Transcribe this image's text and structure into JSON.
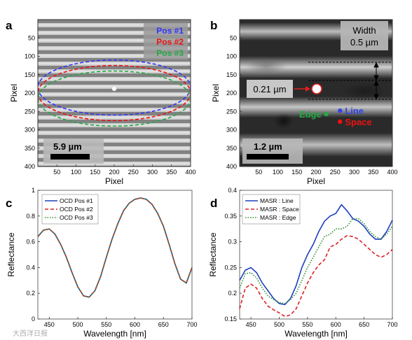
{
  "chart_data": [
    {
      "panel": "a",
      "type": "image",
      "xlabel": "Pixel",
      "ylabel": "Pixel",
      "x_ticks": [
        50,
        100,
        150,
        200,
        250,
        300,
        350,
        400
      ],
      "y_ticks": [
        50,
        100,
        150,
        200,
        250,
        300,
        350,
        400
      ],
      "xlim": [
        0,
        400
      ],
      "ylim": [
        0,
        400
      ],
      "legend": [
        "Pos #1",
        "Pos #2",
        "Pos #3"
      ],
      "legend_colors": [
        "#3333ff",
        "#ee1111",
        "#22aa44"
      ],
      "ellipses": [
        {
          "name": "Pos #1",
          "cx": 200,
          "cy": 185,
          "rx": 200,
          "ry": 75
        },
        {
          "name": "Pos #2",
          "cx": 200,
          "cy": 200,
          "rx": 200,
          "ry": 75
        },
        {
          "name": "Pos #3",
          "cx": 200,
          "cy": 215,
          "rx": 200,
          "ry": 75
        }
      ],
      "scalebar": "5.9 µm"
    },
    {
      "panel": "b",
      "type": "image",
      "xlabel": "Pixel",
      "ylabel": "Pixel",
      "x_ticks": [
        50,
        100,
        150,
        200,
        250,
        300,
        350,
        400
      ],
      "y_ticks": [
        50,
        100,
        150,
        200,
        250,
        300,
        350,
        400
      ],
      "xlim": [
        0,
        400
      ],
      "ylim": [
        0,
        400
      ],
      "width_label": "Width\n0.5 µm",
      "spot_label": "0.21 µm",
      "scalebar": "1.2 µm",
      "points": [
        {
          "label": "Line",
          "x": 263,
          "y": 248,
          "color": "#3344ee"
        },
        {
          "label": "Edge",
          "x": 227,
          "y": 257,
          "color": "#22aa44"
        },
        {
          "label": "Space",
          "x": 263,
          "y": 278,
          "color": "#ee1111"
        }
      ]
    },
    {
      "panel": "c",
      "type": "line",
      "xlabel": "Wavelength [nm]",
      "ylabel": "Reflectance",
      "xlim": [
        430,
        700
      ],
      "ylim": [
        0,
        1
      ],
      "x_ticks": [
        450,
        500,
        550,
        600,
        650,
        700
      ],
      "y_ticks": [
        0,
        0.2,
        0.4,
        0.6,
        0.8,
        1
      ],
      "x": [
        430,
        440,
        450,
        460,
        470,
        480,
        490,
        500,
        510,
        520,
        530,
        540,
        550,
        560,
        570,
        580,
        590,
        600,
        610,
        620,
        630,
        640,
        650,
        660,
        670,
        680,
        690,
        700
      ],
      "series": [
        {
          "name": "OCD Pos #1",
          "color": "#1f3fbf",
          "dash": "",
          "values": [
            0.64,
            0.69,
            0.7,
            0.66,
            0.58,
            0.48,
            0.36,
            0.25,
            0.18,
            0.17,
            0.22,
            0.33,
            0.48,
            0.62,
            0.74,
            0.84,
            0.9,
            0.93,
            0.94,
            0.93,
            0.89,
            0.82,
            0.72,
            0.58,
            0.43,
            0.31,
            0.28,
            0.4
          ]
        },
        {
          "name": "OCD Pos #2",
          "color": "#dd2222",
          "dash": "5,3",
          "values": [
            0.64,
            0.69,
            0.7,
            0.66,
            0.58,
            0.48,
            0.36,
            0.25,
            0.18,
            0.17,
            0.22,
            0.33,
            0.48,
            0.62,
            0.74,
            0.84,
            0.9,
            0.93,
            0.94,
            0.93,
            0.89,
            0.82,
            0.72,
            0.58,
            0.43,
            0.31,
            0.28,
            0.4
          ]
        },
        {
          "name": "OCD Pos #3",
          "color": "#2e8b2e",
          "dash": "1.5,2",
          "values": [
            0.64,
            0.69,
            0.7,
            0.66,
            0.58,
            0.48,
            0.36,
            0.25,
            0.18,
            0.17,
            0.22,
            0.33,
            0.48,
            0.62,
            0.74,
            0.84,
            0.9,
            0.93,
            0.94,
            0.93,
            0.89,
            0.82,
            0.72,
            0.58,
            0.43,
            0.31,
            0.28,
            0.4
          ]
        }
      ]
    },
    {
      "panel": "d",
      "type": "line",
      "xlabel": "Wavelength [nm]",
      "ylabel": "Reflectance",
      "xlim": [
        430,
        700
      ],
      "ylim": [
        0.15,
        0.4
      ],
      "x_ticks": [
        450,
        500,
        550,
        600,
        650,
        700
      ],
      "y_ticks": [
        0.15,
        0.2,
        0.25,
        0.3,
        0.35,
        0.4
      ],
      "x": [
        430,
        440,
        450,
        460,
        470,
        480,
        490,
        500,
        510,
        520,
        530,
        540,
        550,
        560,
        570,
        580,
        590,
        600,
        610,
        620,
        630,
        640,
        650,
        660,
        670,
        680,
        690,
        700
      ],
      "series": [
        {
          "name": "MASR : Line",
          "color": "#1f3fbf",
          "dash": "",
          "values": [
            0.225,
            0.245,
            0.25,
            0.24,
            0.22,
            0.205,
            0.19,
            0.18,
            0.178,
            0.19,
            0.215,
            0.25,
            0.275,
            0.295,
            0.32,
            0.34,
            0.35,
            0.355,
            0.372,
            0.36,
            0.345,
            0.34,
            0.33,
            0.315,
            0.305,
            0.305,
            0.32,
            0.342
          ]
        },
        {
          "name": "MASR : Space",
          "color": "#dd2222",
          "dash": "5,3",
          "values": [
            0.17,
            0.21,
            0.218,
            0.21,
            0.19,
            0.175,
            0.168,
            0.162,
            0.155,
            0.158,
            0.17,
            0.195,
            0.22,
            0.24,
            0.255,
            0.265,
            0.29,
            0.295,
            0.305,
            0.312,
            0.31,
            0.305,
            0.295,
            0.285,
            0.275,
            0.27,
            0.275,
            0.285
          ]
        },
        {
          "name": "MASR : Edge",
          "color": "#2e8b2e",
          "dash": "1.5,2",
          "values": [
            0.21,
            0.238,
            0.24,
            0.23,
            0.21,
            0.195,
            0.188,
            0.182,
            0.18,
            0.188,
            0.2,
            0.225,
            0.25,
            0.27,
            0.29,
            0.31,
            0.315,
            0.325,
            0.325,
            0.33,
            0.345,
            0.345,
            0.335,
            0.32,
            0.31,
            0.305,
            0.315,
            0.33
          ]
        }
      ]
    }
  ],
  "panels": {
    "a": {
      "letter": "a"
    },
    "b": {
      "letter": "b"
    },
    "c": {
      "letter": "c"
    },
    "d": {
      "letter": "d"
    }
  },
  "watermark": "大西洋日报"
}
